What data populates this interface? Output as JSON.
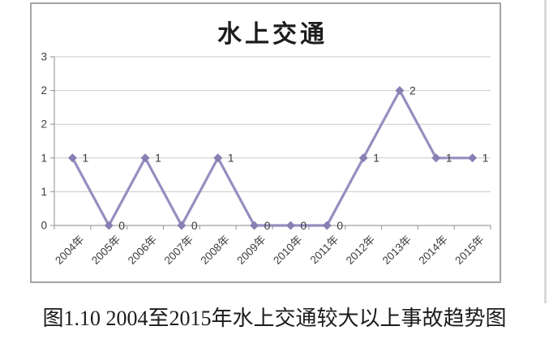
{
  "figure": {
    "caption": "图1.10 2004至2015年水上交通较大以上事故趋势图"
  },
  "chart_data": {
    "type": "line",
    "title": "水上交通",
    "categories": [
      "2004年",
      "2005年",
      "2006年",
      "2007年",
      "2008年",
      "2009年",
      "2010年",
      "2011年",
      "2012年",
      "2013年",
      "2014年",
      "2015年"
    ],
    "series": [
      {
        "name": "水上交通",
        "values": [
          1,
          0,
          1,
          0,
          1,
          0,
          0,
          0,
          1,
          2,
          1,
          1
        ]
      }
    ],
    "data_labels": true,
    "marker": "diamond",
    "ylim": [
      0,
      2.5
    ],
    "ytick_values": [
      0,
      0.5,
      1,
      1.5,
      2,
      2.5
    ],
    "ytick_labels": [
      "0",
      "1",
      "1",
      "2",
      "2",
      "3"
    ],
    "grid": true,
    "legend_position": "none",
    "colors": {
      "line": "#968ec0",
      "marker": "#8880b4",
      "grid": "#c9c9cc",
      "axis": "#a0a0a0",
      "tick_label": "#3d3d3d",
      "data_label": "#3a3a3a",
      "title": "#1d1d1d",
      "border": "#a5a5a5"
    }
  }
}
